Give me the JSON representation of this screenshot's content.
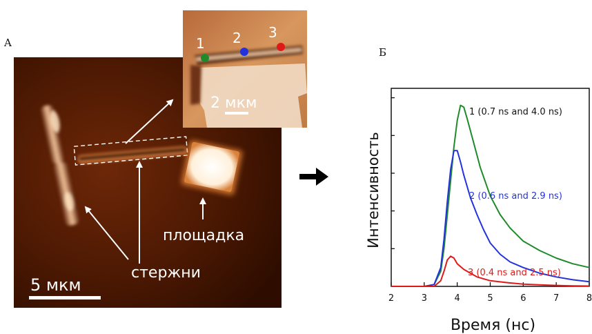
{
  "panel_a": {
    "letter": "A",
    "scale_main": "5 мкм",
    "scale_inset": "2 мкм",
    "label_rods": "стержни",
    "label_pad": "площадка",
    "inset_points": [
      {
        "label": "1",
        "color": "#1f8a2a"
      },
      {
        "label": "2",
        "color": "#2233dd"
      },
      {
        "label": "3",
        "color": "#e01818"
      }
    ]
  },
  "panel_b": {
    "letter": "Б"
  },
  "chart_data": {
    "type": "line",
    "xlabel": "Время (нс)",
    "ylabel": "Интенсивность",
    "xlim": [
      2,
      8
    ],
    "ylim": [
      0,
      1.05
    ],
    "xticks": [
      "2",
      "3",
      "4",
      "5",
      "6",
      "7",
      "8"
    ],
    "yticks_labeled": false,
    "grid": false,
    "series": [
      {
        "name": "1 (0.7 ns and 4.0 ns)",
        "color": "#1f8a2a",
        "x": [
          2.0,
          3.0,
          3.3,
          3.5,
          3.6,
          3.7,
          3.8,
          3.9,
          4.0,
          4.1,
          4.2,
          4.3,
          4.5,
          4.7,
          5.0,
          5.3,
          5.6,
          6.0,
          6.5,
          7.0,
          7.5,
          8.0
        ],
        "y": [
          0.0,
          0.0,
          0.01,
          0.08,
          0.2,
          0.38,
          0.56,
          0.74,
          0.88,
          0.96,
          0.95,
          0.89,
          0.76,
          0.63,
          0.48,
          0.38,
          0.31,
          0.24,
          0.19,
          0.15,
          0.12,
          0.1
        ]
      },
      {
        "name": "2 (0.6 ns and 2.9 ns)",
        "color": "#2233dd",
        "x": [
          2.0,
          3.0,
          3.3,
          3.5,
          3.6,
          3.7,
          3.8,
          3.9,
          4.0,
          4.1,
          4.2,
          4.4,
          4.6,
          4.8,
          5.0,
          5.3,
          5.6,
          6.0,
          6.5,
          7.0,
          7.5,
          8.0
        ],
        "y": [
          0.0,
          0.0,
          0.01,
          0.1,
          0.25,
          0.45,
          0.62,
          0.72,
          0.72,
          0.66,
          0.59,
          0.47,
          0.38,
          0.3,
          0.23,
          0.17,
          0.13,
          0.1,
          0.07,
          0.05,
          0.035,
          0.025
        ]
      },
      {
        "name": "3 (0.4 ns and 2.5 ns)",
        "color": "#e01818",
        "x": [
          2.0,
          3.0,
          3.3,
          3.5,
          3.6,
          3.7,
          3.8,
          3.9,
          4.0,
          4.2,
          4.4,
          4.6,
          4.8,
          5.0,
          5.5,
          6.0,
          6.5,
          7.0,
          7.5,
          8.0
        ],
        "y": [
          0.0,
          0.0,
          0.0,
          0.03,
          0.08,
          0.14,
          0.16,
          0.15,
          0.12,
          0.09,
          0.07,
          0.05,
          0.04,
          0.03,
          0.02,
          0.012,
          0.008,
          0.005,
          0.003,
          0.002
        ]
      }
    ]
  }
}
